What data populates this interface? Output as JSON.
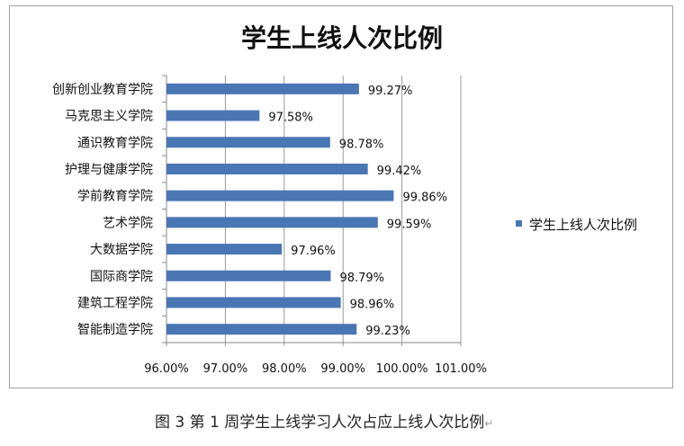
{
  "chart_data": {
    "type": "bar",
    "orientation": "horizontal",
    "title": "学生上线人次比例",
    "categories": [
      "创新创业教育学院",
      "马克思主义学院",
      "通识教育学院",
      "护理与健康学院",
      "学前教育学院",
      "艺术学院",
      "大数据学院",
      "国际商学院",
      "建筑工程学院",
      "智能制造学院"
    ],
    "series": [
      {
        "name": "学生上线人次比例",
        "values": [
          99.27,
          97.58,
          98.78,
          99.42,
          99.86,
          99.59,
          97.96,
          98.79,
          98.96,
          99.23
        ]
      }
    ],
    "data_labels": [
      "99.27%",
      "97.58%",
      "98.78%",
      "99.42%",
      "99.86%",
      "99.59%",
      "97.96%",
      "98.79%",
      "98.96%",
      "99.23%"
    ],
    "xlim": [
      96,
      101
    ],
    "xticks": [
      96,
      97,
      98,
      99,
      100,
      101
    ],
    "xtick_labels": [
      "96.00%",
      "97.00%",
      "98.00%",
      "99.00%",
      "100.00%",
      "101.00%"
    ],
    "xlabel": "",
    "ylabel": "",
    "grid": "vertical",
    "legend": "right",
    "color": "#4a76b4"
  },
  "caption": "图 3 第 1 周学生上线学习人次占应上线人次比例",
  "caption_mark": "↵"
}
